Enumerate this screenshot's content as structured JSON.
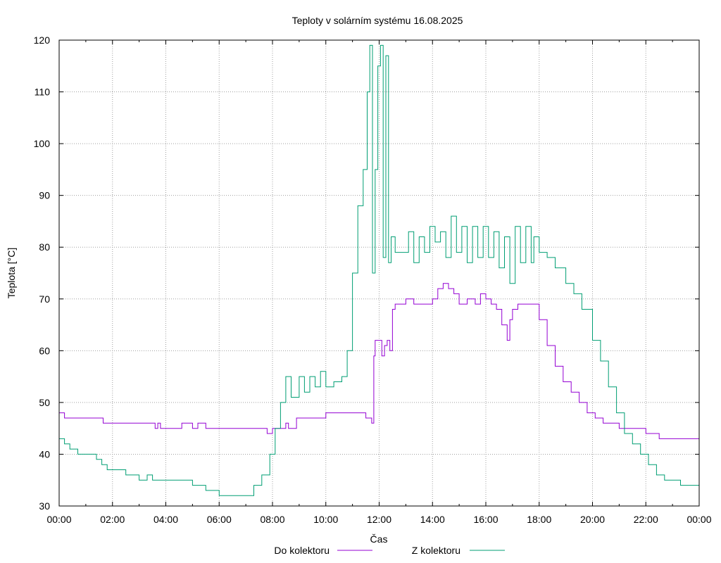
{
  "chart_data": {
    "type": "line",
    "title": "Teploty v solárním systému 16.08.2025",
    "xlabel": "Čas",
    "ylabel": "Teplota [°C]",
    "ylim": [
      30,
      120
    ],
    "xlim": [
      0,
      24
    ],
    "yticks": [
      30,
      40,
      50,
      60,
      70,
      80,
      90,
      100,
      110,
      120
    ],
    "xtick_hours": [
      0,
      2,
      4,
      6,
      8,
      10,
      12,
      14,
      16,
      18,
      20,
      22,
      24
    ],
    "xtick_labels": [
      "00:00",
      "02:00",
      "04:00",
      "06:00",
      "08:00",
      "10:00",
      "12:00",
      "14:00",
      "16:00",
      "18:00",
      "20:00",
      "22:00",
      "00:00"
    ],
    "grid": true,
    "legend_position": "bottom-center",
    "series": [
      {
        "name": "Do kolektoru",
        "color": "#9400d3",
        "x": [
          0,
          0.15,
          0.2,
          1.6,
          1.65,
          3.5,
          3.6,
          3.7,
          3.8,
          4.4,
          4.5,
          4.6,
          5.0,
          5.2,
          5.5,
          6.0,
          7.0,
          7.6,
          7.8,
          8.0,
          8.5,
          8.6,
          8.9,
          9.5,
          10.0,
          10.6,
          11.5,
          11.7,
          11.72,
          11.8,
          11.85,
          12.0,
          12.1,
          12.2,
          12.3,
          12.4,
          12.5,
          12.6,
          12.8,
          13.0,
          13.3,
          13.6,
          14.0,
          14.2,
          14.4,
          14.6,
          14.8,
          15.0,
          15.3,
          15.6,
          15.8,
          16.0,
          16.2,
          16.4,
          16.6,
          16.8,
          16.9,
          17.0,
          17.2,
          17.5,
          17.8,
          18.0,
          18.3,
          18.6,
          18.9,
          19.2,
          19.5,
          19.8,
          20.1,
          20.4,
          20.7,
          21.0,
          21.3,
          21.6,
          22.0,
          22.3,
          22.5,
          23.0,
          23.4,
          24.0
        ],
        "values": [
          48,
          48,
          47,
          47,
          46,
          46,
          45,
          46,
          45,
          45,
          45,
          46,
          45,
          46,
          45,
          45,
          45,
          45,
          44,
          45,
          46,
          45,
          47,
          47,
          48,
          48,
          47,
          47,
          46,
          59,
          62,
          62,
          59,
          61,
          62,
          60,
          68,
          69,
          69,
          70,
          69,
          69,
          70,
          72,
          73,
          72,
          71,
          69,
          70,
          69,
          71,
          70,
          69,
          68,
          65,
          62,
          66,
          68,
          69,
          69,
          69,
          66,
          61,
          57,
          54,
          52,
          50,
          48,
          47,
          46,
          46,
          45,
          45,
          45,
          44,
          44,
          43,
          43,
          43,
          43
        ]
      },
      {
        "name": "Z kolektoru",
        "color": "#009e73",
        "x": [
          0,
          0.2,
          0.4,
          0.7,
          1.0,
          1.2,
          1.4,
          1.6,
          1.8,
          2.0,
          2.5,
          2.8,
          3.0,
          3.3,
          3.5,
          4.0,
          4.5,
          5.0,
          5.5,
          6.0,
          6.5,
          7.0,
          7.3,
          7.6,
          7.9,
          8.1,
          8.3,
          8.5,
          8.7,
          9.0,
          9.2,
          9.4,
          9.6,
          9.8,
          10.0,
          10.3,
          10.5,
          10.6,
          10.8,
          11.0,
          11.2,
          11.4,
          11.55,
          11.65,
          11.75,
          11.85,
          11.95,
          12.05,
          12.15,
          12.25,
          12.35,
          12.45,
          12.6,
          12.9,
          13.1,
          13.3,
          13.5,
          13.7,
          13.9,
          14.1,
          14.3,
          14.5,
          14.7,
          14.9,
          15.1,
          15.3,
          15.5,
          15.7,
          15.9,
          16.1,
          16.3,
          16.5,
          16.7,
          16.9,
          17.1,
          17.3,
          17.5,
          17.7,
          17.8,
          18.0,
          18.3,
          18.6,
          19.0,
          19.3,
          19.6,
          20.0,
          20.3,
          20.6,
          20.9,
          21.2,
          21.5,
          21.8,
          22.1,
          22.4,
          22.7,
          23.0,
          23.3,
          23.6,
          23.85,
          24.0
        ],
        "values": [
          43,
          42,
          41,
          40,
          40,
          40,
          39,
          38,
          37,
          37,
          36,
          36,
          35,
          36,
          35,
          35,
          35,
          34,
          33,
          32,
          32,
          32,
          34,
          36,
          40,
          45,
          50,
          55,
          51,
          55,
          52,
          55,
          53,
          56,
          53,
          54,
          54,
          55,
          60,
          75,
          88,
          95,
          110,
          119,
          75,
          95,
          115,
          119,
          78,
          117,
          77,
          82,
          79,
          79,
          83,
          77,
          82,
          79,
          84,
          81,
          83,
          78,
          86,
          79,
          84,
          77,
          84,
          78,
          84,
          78,
          83,
          76,
          82,
          73,
          84,
          77,
          84,
          77,
          82,
          79,
          78,
          76,
          73,
          71,
          68,
          62,
          58,
          53,
          48,
          44,
          42,
          40,
          38,
          36,
          35,
          35,
          34,
          34,
          34,
          34
        ]
      }
    ]
  }
}
